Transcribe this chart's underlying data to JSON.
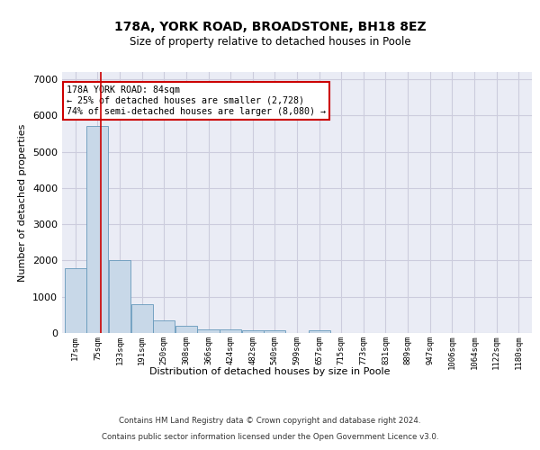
{
  "title": "178A, YORK ROAD, BROADSTONE, BH18 8EZ",
  "subtitle": "Size of property relative to detached houses in Poole",
  "xlabel": "Distribution of detached houses by size in Poole",
  "ylabel": "Number of detached properties",
  "bin_labels": [
    "17sqm",
    "75sqm",
    "133sqm",
    "191sqm",
    "250sqm",
    "308sqm",
    "366sqm",
    "424sqm",
    "482sqm",
    "540sqm",
    "599sqm",
    "657sqm",
    "715sqm",
    "773sqm",
    "831sqm",
    "889sqm",
    "947sqm",
    "1006sqm",
    "1064sqm",
    "1122sqm",
    "1180sqm"
  ],
  "bar_values": [
    1780,
    5700,
    2020,
    800,
    360,
    190,
    105,
    105,
    85,
    65,
    0,
    85,
    0,
    0,
    0,
    0,
    0,
    0,
    0,
    0,
    0
  ],
  "bar_color": "#c8d8e8",
  "bar_edgecolor": "#6699bb",
  "property_line_color": "#cc0000",
  "annotation_text": "178A YORK ROAD: 84sqm\n← 25% of detached houses are smaller (2,728)\n74% of semi-detached houses are larger (8,080) →",
  "annotation_box_color": "#ffffff",
  "annotation_box_edgecolor": "#cc0000",
  "ylim": [
    0,
    7200
  ],
  "yticks": [
    0,
    1000,
    2000,
    3000,
    4000,
    5000,
    6000,
    7000
  ],
  "grid_color": "#ccccdd",
  "background_color": "#eaecf5",
  "footer_line1": "Contains HM Land Registry data © Crown copyright and database right 2024.",
  "footer_line2": "Contains public sector information licensed under the Open Government Licence v3.0.",
  "bin_width": 58
}
